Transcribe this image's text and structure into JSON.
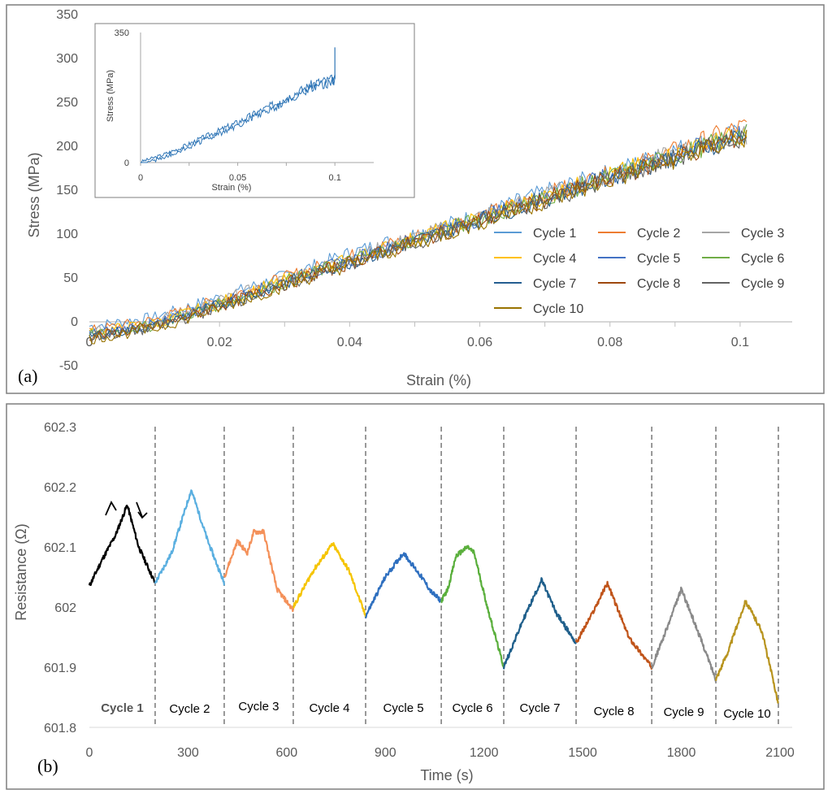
{
  "chart_data": [
    {
      "panel": "(a)",
      "type": "line",
      "title": "",
      "xlabel": "Strain (%)",
      "ylabel": "Stress (MPa)",
      "xlim": [
        0,
        0.108
      ],
      "ylim": [
        -50,
        350
      ],
      "x_ticks": [
        "0.02",
        "0.04",
        "0.06",
        "0.08",
        "0.1"
      ],
      "x_tick_values": [
        0.02,
        0.04,
        0.06,
        0.08,
        0.1
      ],
      "y_ticks": [
        "-50",
        "0",
        "50",
        "100",
        "150",
        "200",
        "250",
        "300",
        "350"
      ],
      "y_tick_values": [
        -50,
        0,
        50,
        100,
        150,
        200,
        250,
        300,
        350
      ],
      "origin_label": "0",
      "legend_placement": "lower-right",
      "series": [
        {
          "name": "Cycle 1",
          "color": "#5b9bd5",
          "x": [
            0,
            0.01,
            0.02,
            0.03,
            0.04,
            0.05,
            0.06,
            0.07,
            0.08,
            0.09,
            0.1
          ],
          "values": [
            -5,
            5,
            28,
            52,
            78,
            100,
            122,
            148,
            170,
            196,
            215
          ]
        },
        {
          "name": "Cycle 2",
          "color": "#ed7d31",
          "x": [
            0,
            0.01,
            0.02,
            0.03,
            0.04,
            0.05,
            0.06,
            0.07,
            0.08,
            0.09,
            0.1
          ],
          "values": [
            -10,
            2,
            25,
            50,
            74,
            97,
            120,
            145,
            168,
            195,
            222
          ]
        },
        {
          "name": "Cycle 3",
          "color": "#a5a5a5",
          "x": [
            0,
            0.01,
            0.02,
            0.03,
            0.04,
            0.05,
            0.06,
            0.07,
            0.08,
            0.09,
            0.1
          ],
          "values": [
            -12,
            0,
            24,
            48,
            72,
            96,
            120,
            144,
            168,
            192,
            212
          ]
        },
        {
          "name": "Cycle 4",
          "color": "#ffc000",
          "x": [
            0,
            0.01,
            0.02,
            0.03,
            0.04,
            0.05,
            0.06,
            0.07,
            0.08,
            0.09,
            0.1
          ],
          "values": [
            -12,
            -2,
            22,
            47,
            71,
            95,
            119,
            143,
            167,
            191,
            213
          ]
        },
        {
          "name": "Cycle 5",
          "color": "#4472c4",
          "x": [
            0,
            0.01,
            0.02,
            0.03,
            0.04,
            0.05,
            0.06,
            0.07,
            0.08,
            0.09,
            0.1
          ],
          "values": [
            -14,
            -3,
            21,
            46,
            70,
            94,
            118,
            142,
            166,
            190,
            214
          ]
        },
        {
          "name": "Cycle 6",
          "color": "#70ad47",
          "x": [
            0,
            0.01,
            0.02,
            0.03,
            0.04,
            0.05,
            0.06,
            0.07,
            0.08,
            0.09,
            0.1
          ],
          "values": [
            -15,
            -4,
            20,
            45,
            69,
            93,
            117,
            141,
            165,
            189,
            213
          ]
        },
        {
          "name": "Cycle 7",
          "color": "#255e91",
          "x": [
            0,
            0.01,
            0.02,
            0.03,
            0.04,
            0.05,
            0.06,
            0.07,
            0.08,
            0.09,
            0.1
          ],
          "values": [
            -16,
            -5,
            19,
            44,
            68,
            92,
            116,
            140,
            164,
            188,
            212
          ]
        },
        {
          "name": "Cycle 8",
          "color": "#9e480e",
          "x": [
            0,
            0.01,
            0.02,
            0.03,
            0.04,
            0.05,
            0.06,
            0.07,
            0.08,
            0.09,
            0.1
          ],
          "values": [
            -17,
            -6,
            18,
            43,
            67,
            91,
            115,
            139,
            163,
            187,
            211
          ]
        },
        {
          "name": "Cycle 9",
          "color": "#636363",
          "x": [
            0,
            0.01,
            0.02,
            0.03,
            0.04,
            0.05,
            0.06,
            0.07,
            0.08,
            0.09,
            0.1
          ],
          "values": [
            -18,
            -7,
            17,
            42,
            66,
            90,
            114,
            138,
            162,
            186,
            210
          ]
        },
        {
          "name": "Cycle 10",
          "color": "#997300",
          "x": [
            0,
            0.01,
            0.02,
            0.03,
            0.04,
            0.05,
            0.06,
            0.07,
            0.08,
            0.09,
            0.1
          ],
          "values": [
            -20,
            -8,
            16,
            41,
            65,
            89,
            113,
            137,
            161,
            185,
            209
          ]
        }
      ],
      "inset": {
        "type": "line",
        "xlabel": "Strain (%)",
        "ylabel": "Stress (MPa)",
        "xlim": [
          0,
          0.12
        ],
        "ylim": [
          0,
          350
        ],
        "x_ticks": [
          "0",
          "0.05",
          "0.1"
        ],
        "x_tick_values": [
          0,
          0.05,
          0.1
        ],
        "y_ticks": [
          "0",
          "350"
        ],
        "y_tick_values": [
          0,
          350
        ],
        "color": "#2e75b6",
        "x": [
          0,
          0.01,
          0.02,
          0.03,
          0.04,
          0.05,
          0.06,
          0.07,
          0.08,
          0.09,
          0.1
        ],
        "values": [
          2,
          18,
          38,
          62,
          85,
          108,
          135,
          160,
          188,
          215,
          310
        ]
      }
    },
    {
      "panel": "(b)",
      "type": "line",
      "title": "",
      "xlabel": "Time (s)",
      "ylabel": "Resistance (Ω)",
      "xlim": [
        0,
        2100
      ],
      "ylim": [
        601.8,
        602.3
      ],
      "x_ticks": [
        "0",
        "300",
        "600",
        "900",
        "1200",
        "1500",
        "1800",
        "2100"
      ],
      "x_tick_values": [
        0,
        300,
        600,
        900,
        1200,
        1500,
        1800,
        2100
      ],
      "y_ticks": [
        "601.8",
        "601.9",
        "602",
        "602.1",
        "602.2",
        "602.3"
      ],
      "y_tick_values": [
        601.8,
        601.9,
        602.0,
        602.1,
        602.2,
        602.3
      ],
      "cycle_boundaries": [
        200,
        410,
        620,
        840,
        1070,
        1260,
        1480,
        1710,
        1905,
        2095
      ],
      "series": [
        {
          "name": "Cycle 1",
          "color": "#000000",
          "x": [
            0,
            40,
            80,
            115,
            150,
            200
          ],
          "values": [
            602.035,
            602.08,
            602.12,
            602.17,
            602.1,
            602.04
          ]
        },
        {
          "name": "Cycle 2",
          "color": "#5aafe0",
          "x": [
            200,
            250,
            310,
            360,
            410
          ],
          "values": [
            602.04,
            602.09,
            602.195,
            602.11,
            602.04
          ]
        },
        {
          "name": "Cycle 3",
          "color": "#f4915a",
          "x": [
            410,
            450,
            480,
            500,
            530,
            570,
            620
          ],
          "values": [
            602.05,
            602.11,
            602.09,
            602.125,
            602.125,
            602.03,
            601.995
          ]
        },
        {
          "name": "Cycle 4",
          "color": "#f5c400",
          "x": [
            620,
            680,
            740,
            790,
            840
          ],
          "values": [
            602.0,
            602.06,
            602.105,
            602.06,
            601.985
          ]
        },
        {
          "name": "Cycle 5",
          "color": "#2e6fbf",
          "x": [
            840,
            900,
            955,
            1010,
            1040,
            1070
          ],
          "values": [
            601.985,
            602.05,
            602.09,
            602.05,
            602.025,
            602.01
          ]
        },
        {
          "name": "Cycle 6",
          "color": "#5aaf3c",
          "x": [
            1070,
            1090,
            1115,
            1150,
            1170,
            1210,
            1260
          ],
          "values": [
            602.01,
            602.03,
            602.085,
            602.1,
            602.09,
            602.0,
            601.9
          ]
        },
        {
          "name": "Cycle 7",
          "color": "#1f5f8b",
          "x": [
            1260,
            1320,
            1375,
            1420,
            1480
          ],
          "values": [
            601.9,
            601.98,
            602.045,
            601.99,
            601.94
          ]
        },
        {
          "name": "Cycle 8",
          "color": "#c0541a",
          "x": [
            1480,
            1530,
            1575,
            1640,
            1710
          ],
          "values": [
            601.94,
            601.99,
            602.04,
            601.95,
            601.9
          ]
        },
        {
          "name": "Cycle 9",
          "color": "#8a8a8a",
          "x": [
            1710,
            1760,
            1800,
            1850,
            1905
          ],
          "values": [
            601.9,
            601.97,
            602.03,
            601.96,
            601.88
          ]
        },
        {
          "name": "Cycle 10",
          "color": "#b8941f",
          "x": [
            1905,
            1945,
            1995,
            2045,
            2095
          ],
          "values": [
            601.88,
            601.93,
            602.01,
            601.96,
            601.84
          ]
        }
      ],
      "cycle_labels": [
        "Cycle 1",
        "Cycle 2",
        "Cycle 3",
        "Cycle 4",
        "Cycle 5",
        "Cycle 6",
        "Cycle 7",
        "Cycle 8",
        "Cycle 9",
        "Cycle 10"
      ]
    }
  ]
}
